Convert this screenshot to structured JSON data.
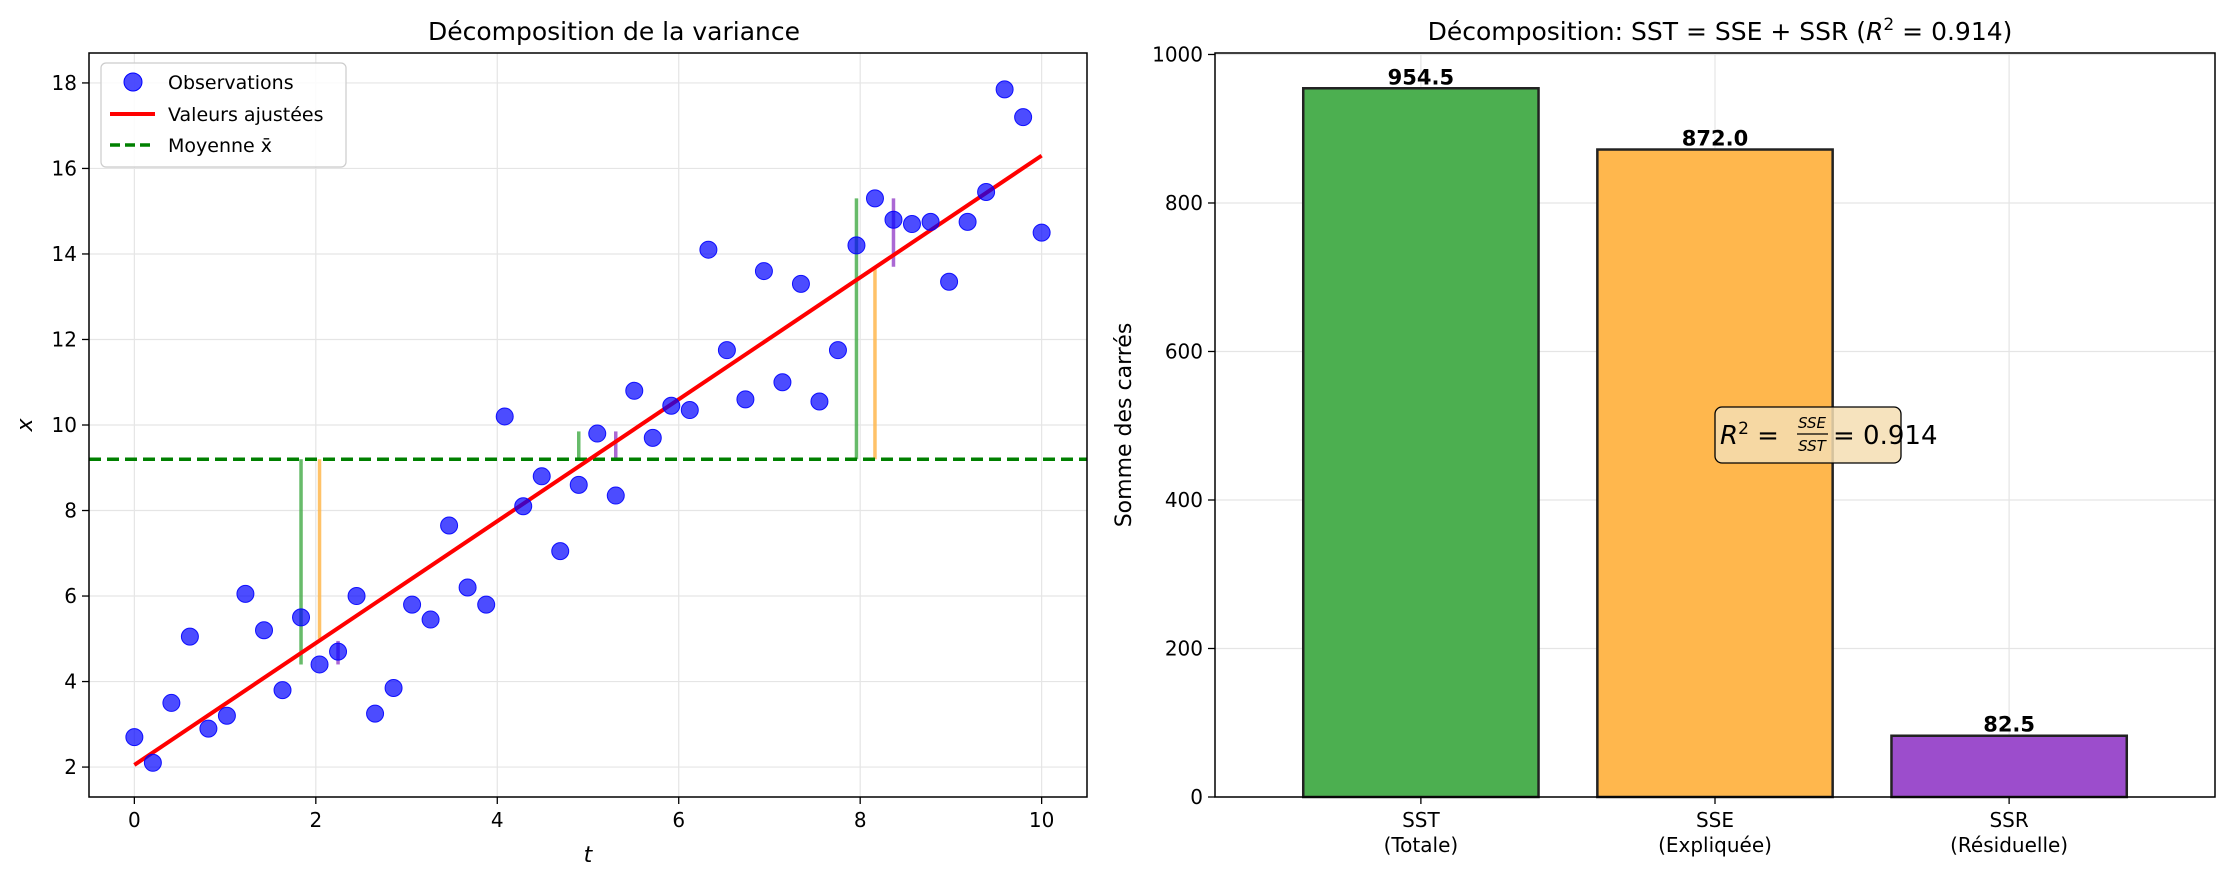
{
  "chart_data": [
    {
      "type": "scatter",
      "title": "Décomposition de la variance",
      "xlabel": "t",
      "ylabel": "x",
      "xlim": [
        -0.5,
        10.5
      ],
      "ylim": [
        1.3,
        18.7
      ],
      "xticks": [
        0,
        2,
        4,
        6,
        8,
        10
      ],
      "yticks": [
        2,
        4,
        6,
        8,
        10,
        12,
        14,
        16,
        18
      ],
      "grid": true,
      "legend": {
        "position": "top-left",
        "entries": [
          "Observations",
          "Valeurs ajustées",
          "Moyenne x̄"
        ]
      },
      "series": [
        {
          "name": "Observations",
          "kind": "scatter",
          "color": "#0000ff",
          "x": [
            0.0,
            0.204,
            0.408,
            0.612,
            0.816,
            1.02,
            1.224,
            1.429,
            1.633,
            1.837,
            2.041,
            2.245,
            2.449,
            2.653,
            2.857,
            3.061,
            3.265,
            3.469,
            3.673,
            3.878,
            4.082,
            4.286,
            4.49,
            4.694,
            4.898,
            5.102,
            5.306,
            5.51,
            5.714,
            5.918,
            6.122,
            6.327,
            6.531,
            6.735,
            6.939,
            7.143,
            7.347,
            7.551,
            7.755,
            7.959,
            8.163,
            8.367,
            8.571,
            8.776,
            8.98,
            9.184,
            9.388,
            9.592,
            9.796,
            10.0
          ],
          "y": [
            2.7,
            2.1,
            3.5,
            5.05,
            2.9,
            3.2,
            6.05,
            5.2,
            3.8,
            5.5,
            4.4,
            4.7,
            6.0,
            3.25,
            3.85,
            5.8,
            5.45,
            7.65,
            6.2,
            5.8,
            10.2,
            8.1,
            8.8,
            7.05,
            8.6,
            9.8,
            8.35,
            10.8,
            9.7,
            10.45,
            10.35,
            14.1,
            11.75,
            10.6,
            13.6,
            11.0,
            13.3,
            10.55,
            11.75,
            14.2,
            15.3,
            14.8,
            14.7,
            14.75,
            13.35,
            14.75,
            15.45,
            17.85,
            17.2,
            14.5
          ]
        },
        {
          "name": "Valeurs ajustées",
          "kind": "line",
          "color": "#ff0000",
          "x": [
            0,
            10
          ],
          "y": [
            2.05,
            16.3
          ]
        },
        {
          "name": "Moyenne x̄",
          "kind": "hline",
          "color": "#008000",
          "y": 9.2
        }
      ],
      "decomposition_segments": [
        {
          "kind": "total",
          "color": "#4caf50",
          "x": 1.837,
          "y_from": 9.2,
          "y_to": 4.4
        },
        {
          "kind": "explained",
          "color": "#ffb74d",
          "x": 2.041,
          "y_from": 9.2,
          "y_to": 5.0
        },
        {
          "kind": "residual",
          "color": "#9c4dcc",
          "x": 2.245,
          "y_from": 4.4,
          "y_to": 4.95
        },
        {
          "kind": "total",
          "color": "#4caf50",
          "x": 4.898,
          "y_from": 9.2,
          "y_to": 9.85
        },
        {
          "kind": "residual",
          "color": "#9c4dcc",
          "x": 5.306,
          "y_from": 9.2,
          "y_to": 9.85
        },
        {
          "kind": "total",
          "color": "#4caf50",
          "x": 7.959,
          "y_from": 9.2,
          "y_to": 15.3
        },
        {
          "kind": "explained",
          "color": "#ffb74d",
          "x": 8.163,
          "y_from": 9.2,
          "y_to": 13.7
        },
        {
          "kind": "residual",
          "color": "#9c4dcc",
          "x": 8.367,
          "y_from": 13.7,
          "y_to": 15.3
        }
      ]
    },
    {
      "type": "bar",
      "title": "Décomposition: SST = SSE + SSR (R² = 0.914)",
      "xlabel": "",
      "ylabel": "Somme des carrés",
      "ylim": [
        0,
        1002
      ],
      "yticks": [
        0,
        200,
        400,
        600,
        800,
        1000
      ],
      "grid": true,
      "categories": [
        [
          "SST",
          "(Totale)"
        ],
        [
          "SSE",
          "(Expliquée)"
        ],
        [
          "SSR",
          "(Résiduelle)"
        ]
      ],
      "values": [
        954.5,
        872.0,
        82.5
      ],
      "value_labels": [
        "954.5",
        "872.0",
        "82.5"
      ],
      "colors": [
        "#4caf50",
        "#ffb74d",
        "#9c4dcc"
      ],
      "annotation": {
        "text_prefix": "R",
        "text_formula": "SSE / SST",
        "text_value": "= 0.914",
        "box_color": "#f5deb3"
      }
    }
  ]
}
